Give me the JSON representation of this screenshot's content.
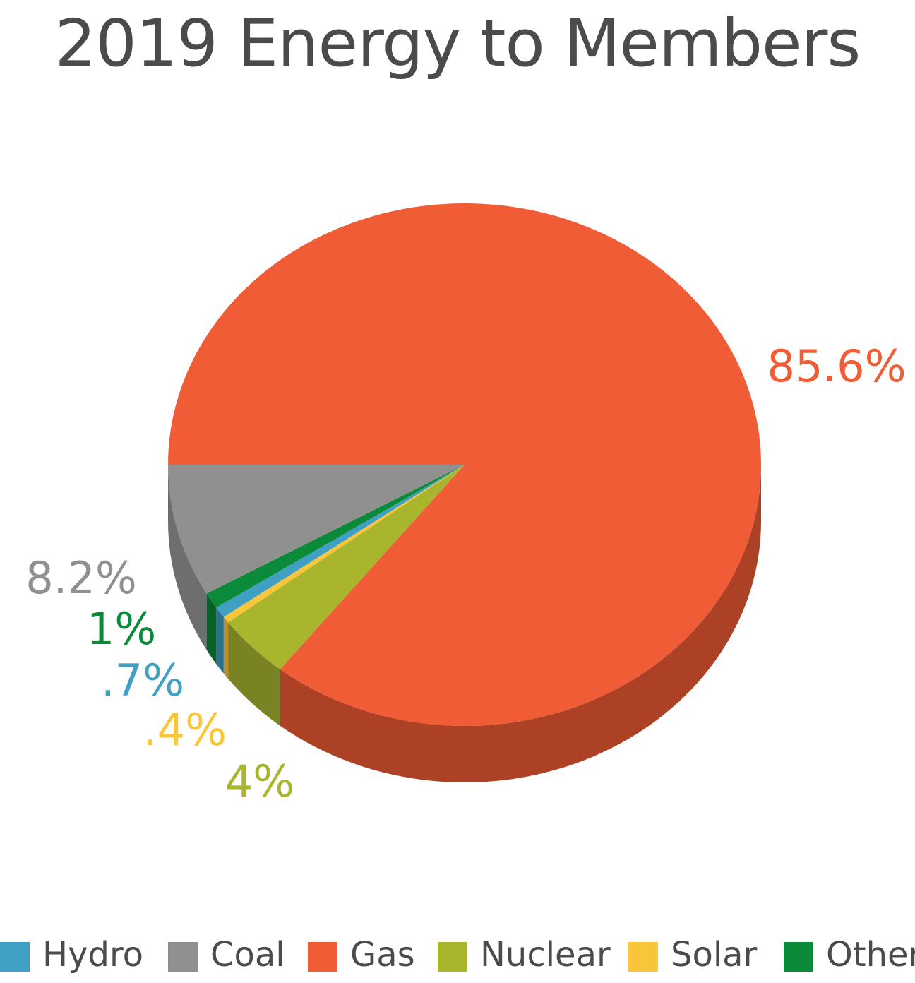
{
  "chart_data": {
    "type": "pie",
    "title": "2019 Energy to Members",
    "slices": [
      {
        "name": "Gas",
        "value": 85.6,
        "label": "85.6%",
        "color": "#ef5c35",
        "side": "#ad4126"
      },
      {
        "name": "Nuclear",
        "value": 4,
        "label": "4%",
        "color": "#a9b52d",
        "side": "#7a8324"
      },
      {
        "name": "Solar",
        "value": 0.4,
        "label": ".4%",
        "color": "#f8c53b",
        "side": "#c09027"
      },
      {
        "name": "Hydro",
        "value": 0.7,
        "label": ".7%",
        "color": "#40a0c4",
        "side": "#2d728b"
      },
      {
        "name": "Other",
        "value": 1,
        "label": "1%",
        "color": "#0b8a3a",
        "side": "#086128"
      },
      {
        "name": "Coal",
        "value": 8.2,
        "label": "8.2%",
        "color": "#8f908f",
        "side": "#6d6e6d"
      }
    ],
    "legend": [
      {
        "name": "Hydro",
        "color": "#40a0c4"
      },
      {
        "name": "Coal",
        "color": "#8f908f"
      },
      {
        "name": "Gas",
        "color": "#ef5c35"
      },
      {
        "name": "Nuclear",
        "color": "#a9b52d"
      },
      {
        "name": "Solar",
        "color": "#f8c53b"
      },
      {
        "name": "Other",
        "color": "#0b8a3a"
      }
    ],
    "legend_position": "bottom"
  }
}
